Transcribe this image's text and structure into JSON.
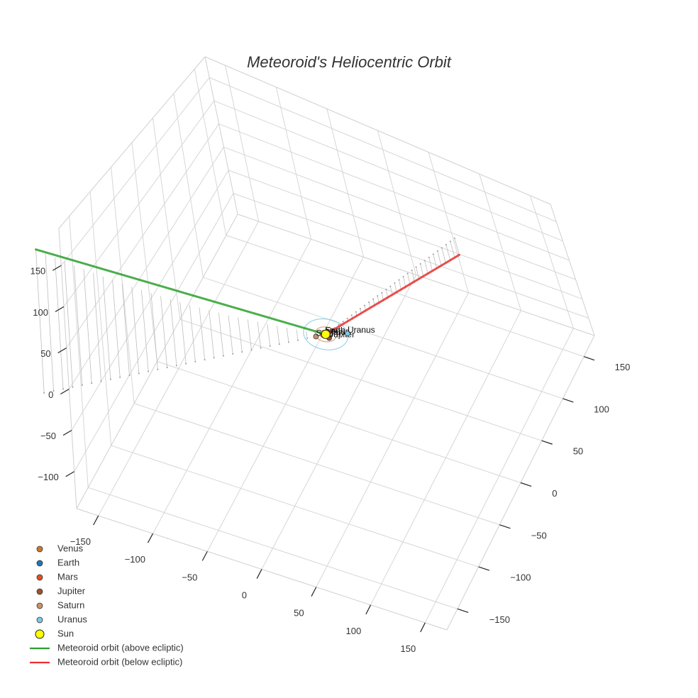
{
  "chart_data": {
    "type": "scatter3d",
    "title": "Meteoroid's Heliocentric Orbit",
    "axes": {
      "x": {
        "range": [
          -170,
          170
        ],
        "ticks": [
          -150,
          -100,
          -50,
          0,
          50,
          100,
          150
        ]
      },
      "y": {
        "range": [
          -175,
          175
        ],
        "ticks": [
          -150,
          -100,
          -50,
          0,
          50,
          100,
          150
        ]
      },
      "z": {
        "range": [
          -145,
          195
        ],
        "ticks": [
          -100,
          -50,
          0,
          50,
          100,
          150
        ]
      },
      "grid": true
    },
    "sun": {
      "name": "Sun",
      "x": 0,
      "y": 0,
      "z": 0,
      "color": "#ffff00"
    },
    "planets": [
      {
        "name": "Venus",
        "x": 0.4,
        "y": -0.6,
        "z": 0,
        "color": "#cc7a29"
      },
      {
        "name": "Earth",
        "x": -0.9,
        "y": 0.4,
        "z": 0,
        "color": "#1f77b4"
      },
      {
        "name": "Mars",
        "x": 1.2,
        "y": -0.8,
        "z": 0,
        "color": "#e0502a"
      },
      {
        "name": "Jupiter",
        "x": 4.4,
        "y": -2.8,
        "z": 0,
        "color": "#a0522d"
      },
      {
        "name": "Saturn",
        "x": -6.5,
        "y": -6.8,
        "z": 0,
        "color": "#c8936a"
      },
      {
        "name": "Uranus",
        "x": 16.5,
        "y": 10.5,
        "z": 0,
        "color": "#7ec8e3"
      }
    ],
    "meteoroid_above": {
      "name": "Meteoroid orbit (above ecliptic)",
      "color": "#2ca02c",
      "start": [
        -187,
        -190,
        170
      ],
      "end": [
        0,
        0,
        0
      ]
    },
    "meteoroid_below": {
      "name": "Meteoroid orbit (below ecliptic)",
      "color": "#e8312f",
      "start": [
        0,
        0,
        0
      ],
      "end": [
        55,
        170,
        -40
      ]
    },
    "legend": {
      "placement": "bottom-left",
      "items": [
        {
          "label": "Venus",
          "kind": "marker",
          "color": "#cc7a29"
        },
        {
          "label": "Earth",
          "kind": "marker",
          "color": "#1f77b4"
        },
        {
          "label": "Mars",
          "kind": "marker",
          "color": "#e0502a"
        },
        {
          "label": "Jupiter",
          "kind": "marker",
          "color": "#a0522d"
        },
        {
          "label": "Saturn",
          "kind": "marker",
          "color": "#c8936a"
        },
        {
          "label": "Uranus",
          "kind": "marker",
          "color": "#7ec8e3"
        },
        {
          "label": "Sun",
          "kind": "sun",
          "color": "#ffff00"
        },
        {
          "label": "Meteoroid orbit (above ecliptic)",
          "kind": "line",
          "color": "#2ca02c"
        },
        {
          "label": "Meteoroid orbit (below ecliptic)",
          "kind": "line",
          "color": "#e8312f"
        }
      ]
    }
  }
}
